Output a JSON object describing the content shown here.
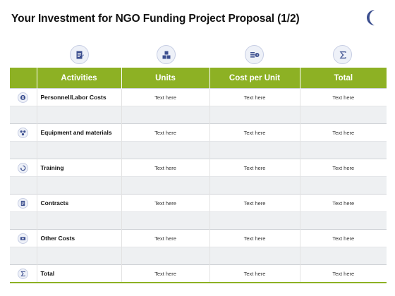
{
  "title": "Your Investment for NGO Funding Project Proposal (1/2)",
  "icons": {
    "moon": "crescent-moon-icon",
    "header": [
      "document-icon",
      "cubes-icon",
      "coins-icon",
      "sigma-icon"
    ]
  },
  "colors": {
    "header_green": "#8db124",
    "icon_blue": "#3c4f8f"
  },
  "table": {
    "headers": [
      "Activities",
      "Units",
      "Cost per Unit",
      "Total"
    ],
    "rows": [
      {
        "icon": "people-icon",
        "activity": "Personnel/Labor Costs",
        "units": "Text here",
        "cost_per_unit": "Text here",
        "total": "Text here"
      },
      {
        "icon": "molecule-icon",
        "activity": "Equipment and materials",
        "units": "Text here",
        "cost_per_unit": "Text here",
        "total": "Text here"
      },
      {
        "icon": "refresh-icon",
        "activity": "Training",
        "units": "Text here",
        "cost_per_unit": "Text here",
        "total": "Text here"
      },
      {
        "icon": "contract-icon",
        "activity": "Contracts",
        "units": "Text here",
        "cost_per_unit": "Text here",
        "total": "Text here"
      },
      {
        "icon": "money-icon",
        "activity": "Other Costs",
        "units": "Text here",
        "cost_per_unit": "Text here",
        "total": "Text here"
      },
      {
        "icon": "sigma-icon",
        "activity": "Total",
        "units": "Text here",
        "cost_per_unit": "Text here",
        "total": "Text here"
      }
    ]
  }
}
